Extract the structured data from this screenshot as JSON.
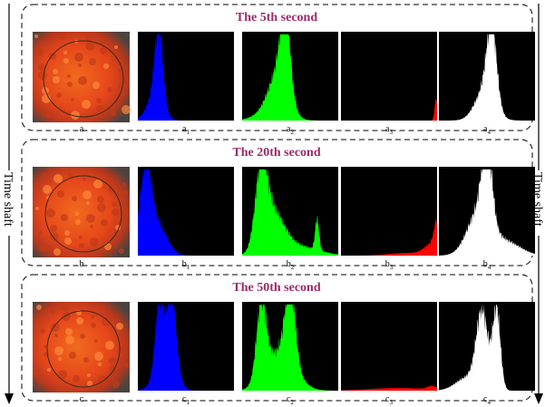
{
  "left_axis_label": "Time shaft",
  "right_axis_label": "Time shaft",
  "rows": [
    {
      "title": "The 5th second",
      "image_label": "a",
      "histograms": [
        {
          "letter": "a",
          "sub": "1"
        },
        {
          "letter": "a",
          "sub": "2"
        },
        {
          "letter": "a",
          "sub": "3"
        },
        {
          "letter": "a",
          "sub": "4"
        }
      ]
    },
    {
      "title": "The 20th second",
      "image_label": "b",
      "histograms": [
        {
          "letter": "b",
          "sub": "1"
        },
        {
          "letter": "b",
          "sub": "2"
        },
        {
          "letter": "b",
          "sub": "3"
        },
        {
          "letter": "b",
          "sub": "4"
        }
      ]
    },
    {
      "title": "The 50th second",
      "image_label": "c",
      "histograms": [
        {
          "letter": "c",
          "sub": "1"
        },
        {
          "letter": "c",
          "sub": "2"
        },
        {
          "letter": "c",
          "sub": "3"
        },
        {
          "letter": "c",
          "sub": "4"
        }
      ]
    }
  ]
}
